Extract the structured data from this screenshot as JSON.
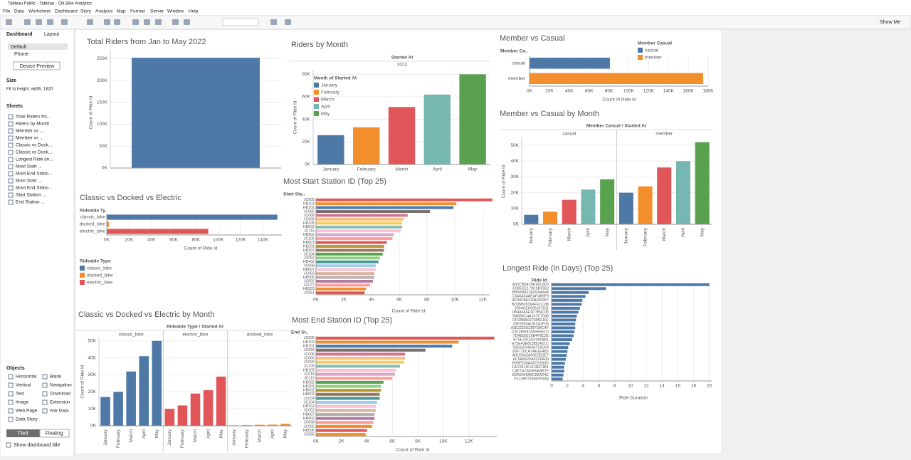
{
  "app": {
    "window_title": "Tableau Public - Tableau - Citi Bike Analytics",
    "menu": [
      "File",
      "Data",
      "Worksheet",
      "Dashboard",
      "Story",
      "Analysis",
      "Map",
      "Format",
      "Server",
      "Window",
      "Help"
    ],
    "show_me": "Show Me",
    "tabs": [
      "Dashboard",
      "Layout"
    ],
    "devices": [
      "Default",
      "Phone"
    ],
    "device_preview": "Device Preview",
    "size_heading": "Size",
    "size_value": "Fit to height: width: 1820",
    "sheets_heading": "Sheets",
    "sheets": [
      "Total Riders fro...",
      "Riders by Month",
      "Member vs ...",
      "Member vs ...",
      "Classic vs Dock...",
      "Classic vs Dock...",
      "Longest Ride (in...",
      "Most Start ...",
      "Most End Statio...",
      "Most Start ...",
      "Most End Statio...",
      "Start Station ...",
      "End Station ..."
    ],
    "objects_heading": "Objects",
    "objects": [
      "Horizontal",
      "Blank",
      "Vertical",
      "Navigation",
      "Text",
      "Download",
      "Image",
      "Extension",
      "Web Page",
      "Ask Data",
      "Data Story"
    ],
    "modes": [
      "Tiled",
      "Floating"
    ],
    "show_title": "Show dashboard title"
  },
  "chart_data": [
    {
      "type": "bar",
      "title": "Total Riders from Jan to May 2022",
      "y_label": "Count of Ride Id",
      "values": [
        252000
      ],
      "color": "#4e79a7",
      "grid": true,
      "ylim": [
        0,
        270000
      ],
      "yticks": [
        {
          "value": 0,
          "label": "0K"
        },
        {
          "value": 50000,
          "label": "50K"
        },
        {
          "value": 100000,
          "label": "100K"
        },
        {
          "value": 150000,
          "label": "150K"
        },
        {
          "value": 200000,
          "label": "200K"
        },
        {
          "value": 250000,
          "label": "250K"
        }
      ]
    },
    {
      "type": "bar",
      "title": "Riders by Month",
      "header": "Started At",
      "subheader": "2022",
      "y_label": "Count of Ride Id",
      "legend_title": "Month of Started At",
      "categories": [
        "January",
        "February",
        "March",
        "April",
        "May"
      ],
      "values": [
        26000,
        33000,
        51000,
        62000,
        80000
      ],
      "colors": [
        "#4e79a7",
        "#f28e2b",
        "#e15759",
        "#76b7b2",
        "#59a14f"
      ],
      "grid": true,
      "ylim": [
        0,
        84000
      ],
      "yticks": [
        {
          "value": 0,
          "label": "0K"
        },
        {
          "value": 20000,
          "label": "20K"
        },
        {
          "value": 40000,
          "label": "40K"
        },
        {
          "value": 60000,
          "label": "60K"
        },
        {
          "value": 80000,
          "label": "80K"
        }
      ]
    },
    {
      "type": "hbar",
      "title": "Member vs Casual",
      "row_header": "Member Ca..",
      "x_label": "Count of Ride Id",
      "legend_title": "Member Casual",
      "categories": [
        "casual",
        "member"
      ],
      "values": [
        81000,
        175000
      ],
      "colors": [
        "#4e79a7",
        "#f28e2b"
      ],
      "grid": true,
      "xlim": [
        0,
        180000
      ],
      "xticks": [
        {
          "value": 0,
          "label": "0K"
        },
        {
          "value": 20000,
          "label": "20K"
        },
        {
          "value": 40000,
          "label": "40K"
        },
        {
          "value": 60000,
          "label": "60K"
        },
        {
          "value": 80000,
          "label": "80K"
        },
        {
          "value": 100000,
          "label": "100K"
        },
        {
          "value": 120000,
          "label": "120K"
        },
        {
          "value": 140000,
          "label": "140K"
        },
        {
          "value": 160000,
          "label": "160K"
        },
        {
          "value": 180000,
          "label": "180K"
        }
      ]
    },
    {
      "type": "bar",
      "title": "Member vs Casual by Month",
      "header": "Member Casual / Started At",
      "y_label": "Count of Ride Id",
      "categories": [
        "January",
        "February",
        "March",
        "April",
        "May"
      ],
      "colors": [
        "#4e79a7",
        "#f28e2b",
        "#e15759",
        "#76b7b2",
        "#59a14f"
      ],
      "series": [
        {
          "name": "casual",
          "values": [
            6000,
            8000,
            15500,
            22000,
            28500
          ]
        },
        {
          "name": "member",
          "values": [
            20000,
            24000,
            36000,
            40000,
            52000
          ]
        }
      ],
      "grid": true,
      "ylim": [
        0,
        55000
      ],
      "yticks": [
        {
          "value": 0,
          "label": "0K"
        },
        {
          "value": 10000,
          "label": "10K"
        },
        {
          "value": 20000,
          "label": "20K"
        },
        {
          "value": 30000,
          "label": "30K"
        },
        {
          "value": 40000,
          "label": "40K"
        },
        {
          "value": 50000,
          "label": "50K"
        }
      ]
    },
    {
      "type": "hbar",
      "title": "Classic vs Docked vs Electric",
      "row_header": "Rideable Ty..",
      "x_label": "Count of Ride Id",
      "legend_title": "Rideable Type",
      "categories": [
        "classic_bike",
        "docked_bike",
        "electric_bike"
      ],
      "values": [
        153000,
        2000,
        91000
      ],
      "colors": [
        "#4e79a7",
        "#f28e2b",
        "#e15759"
      ],
      "grid": true,
      "xlim": [
        0,
        157000
      ],
      "xticks": [
        {
          "value": 0,
          "label": "0K"
        },
        {
          "value": 20000,
          "label": "20K"
        },
        {
          "value": 40000,
          "label": "40K"
        },
        {
          "value": 60000,
          "label": "60K"
        },
        {
          "value": 80000,
          "label": "80K"
        },
        {
          "value": 100000,
          "label": "100K"
        },
        {
          "value": 120000,
          "label": "120K"
        },
        {
          "value": 140000,
          "label": "140K"
        }
      ]
    },
    {
      "type": "bar",
      "title": "Classic vs Docked vs Electric by Month",
      "header": "Rideable Type / Started At",
      "y_label": "Count of Ride Id",
      "categories": [
        "January",
        "February",
        "March",
        "April",
        "May"
      ],
      "series": [
        {
          "name": "classic_bike",
          "color": "#4e79a7",
          "values": [
            17000,
            20000,
            32000,
            41000,
            50000
          ]
        },
        {
          "name": "electric_bike",
          "color": "#e15759",
          "values": [
            10000,
            12000,
            19000,
            21000,
            29000
          ]
        },
        {
          "name": "docked_bike",
          "color": "#f28e2b",
          "values": [
            300,
            400,
            600,
            700,
            1200
          ]
        }
      ],
      "grid": true,
      "ylim": [
        0,
        52000
      ],
      "yticks": [
        {
          "value": 0,
          "label": "0K"
        },
        {
          "value": 10000,
          "label": "10K"
        },
        {
          "value": 20000,
          "label": "20K"
        },
        {
          "value": 30000,
          "label": "30K"
        },
        {
          "value": 40000,
          "label": "40K"
        },
        {
          "value": 50000,
          "label": "50K"
        }
      ]
    },
    {
      "type": "hbar",
      "title": "Most Start Station ID (Top 25)",
      "row_header": "Start Sta..",
      "x_label": "Count of Ride Id",
      "categories": [
        "JC005",
        "HB103",
        "HB101",
        "JC066",
        "JC008",
        "JC009",
        "HB105",
        "HB602",
        "JC115",
        "HB502",
        "JC106",
        "HB603",
        "HB201",
        "HB202",
        "JC104",
        "JC052",
        "HB402",
        "JC098",
        "HB607",
        "JC003",
        "HB506",
        "JC055",
        "JC072",
        "HB303",
        "JC051"
      ],
      "values": [
        12700,
        10100,
        9900,
        8200,
        6600,
        6300,
        6200,
        6200,
        6100,
        5600,
        5500,
        5100,
        4900,
        4900,
        4800,
        4600,
        4500,
        4300,
        4300,
        4200,
        4200,
        4100,
        3900,
        3600,
        3500
      ],
      "colors": [
        "#e15759",
        "#f28e2b",
        "#4e79a7",
        "#79706e",
        "#d37295",
        "#ffbe7d",
        "#f1ce63",
        "#86bcb6",
        "#fabfd2",
        "#d4a6c8",
        "#ff9d9a",
        "#e15759",
        "#b6992d",
        "#9d7660",
        "#59a14f",
        "#8cd17d",
        "#499894",
        "#a0cbe8",
        "#fabfd2",
        "#d7b5a6",
        "#bab0ac",
        "#b07aa1",
        "#ff9d9a",
        "#f28e2b",
        "#e15759"
      ],
      "grid": true,
      "xlim": [
        0,
        12500
      ],
      "xticks": [
        {
          "value": 0,
          "label": "0K"
        },
        {
          "value": 2000,
          "label": "2K"
        },
        {
          "value": 4000,
          "label": "4K"
        },
        {
          "value": 6000,
          "label": "6K"
        },
        {
          "value": 8000,
          "label": "8K"
        },
        {
          "value": 10000,
          "label": "10K"
        },
        {
          "value": 12000,
          "label": "12K"
        }
      ]
    },
    {
      "type": "hbar",
      "title": "Most End Station ID (Top 25)",
      "row_header": "End St..",
      "x_label": "Count of Ride Id",
      "categories": [
        "JC005",
        "HB103",
        "HB101",
        "JC056",
        "JC008",
        "JC066",
        "JC009",
        "JC109",
        "HB105",
        "JC018",
        "JC115",
        "HB502",
        "HB201",
        "HB602",
        "HB603",
        "JC034",
        "JC104",
        "HB102",
        "JC052",
        "HB607",
        "HB402",
        "JC098",
        "JC095",
        "HB506",
        "JC055"
      ],
      "values": [
        14000,
        11200,
        10700,
        8600,
        7000,
        7000,
        6900,
        6600,
        6300,
        6200,
        6000,
        5300,
        5100,
        5100,
        5000,
        5000,
        4800,
        4700,
        4700,
        4600,
        4600,
        4500,
        4400,
        4000,
        3900
      ],
      "colors": [
        "#e15759",
        "#f28e2b",
        "#4e79a7",
        "#79706e",
        "#d37295",
        "#ffbe7d",
        "#f1ce63",
        "#86bcb6",
        "#fabfd2",
        "#d4a6c8",
        "#ff9d9a",
        "#59a14f",
        "#8cd17d",
        "#b6992d",
        "#9d7660",
        "#499894",
        "#a0cbe8",
        "#fabfd2",
        "#d7b5a6",
        "#bab0ac",
        "#b07aa1",
        "#ff9d9a",
        "#f28e2b",
        "#e15759",
        "#f28e2b"
      ],
      "grid": true,
      "xlim": [
        0,
        14200
      ],
      "xticks": [
        {
          "value": 0,
          "label": "0K"
        },
        {
          "value": 2000,
          "label": "2K"
        },
        {
          "value": 4000,
          "label": "4K"
        },
        {
          "value": 6000,
          "label": "6K"
        },
        {
          "value": 8000,
          "label": "8K"
        },
        {
          "value": 10000,
          "label": "10K"
        },
        {
          "value": 12000,
          "label": "12K"
        }
      ]
    },
    {
      "type": "hbar",
      "title": "Longest Ride (in Days) (Top 25)",
      "row_header": "Ride Id",
      "x_label": "Ride Duration",
      "categories": [
        "A35CB047BE96C883",
        "E986CE170C9B9962",
        "BB56BA13E05A4A44",
        "C3A6A54AEAF4B6F9",
        "AF93FBEE94ED0967",
        "BD35B0536AFFCC88",
        "3994CE6936357811",
        "0B4A644E1D7B9C05",
        "B46B6C4A167C7049",
        "DF3ABA02708B216F",
        "33E9930ACB2A2F05",
        "A3E22D0C0B7DBC4F",
        "D322B60D3A6B9E1D",
        "7D4E58216B4F8C26",
        "B75E78C2620908B1",
        "E75E43E8C88DA21C",
        "59D62D460A756D04",
        "90F710CA7AE1E4B2",
        "A0C6543A69C5B2E7",
        "6C6A8920A52F6A09",
        "B68FE08A43C91B3D",
        "1AC0913F1C4EC3B1",
        "C4E7A7A6999A8B7F",
        "B2A9046A5C86A24C",
        "F1149F703800F5A8"
      ],
      "values": [
        20,
        6.9,
        4.7,
        4.3,
        3.9,
        3.8,
        3.6,
        3.4,
        3.2,
        3.1,
        3.0,
        3.0,
        2.9,
        2.8,
        2.6,
        2.3,
        2.1,
        2.0,
        1.9,
        1.8,
        1.7,
        1.6,
        1.6,
        1.5,
        1.4
      ],
      "color": "#4e79a7",
      "grid": true,
      "xlim": [
        0,
        20.3
      ],
      "xticks": [
        0,
        2,
        4,
        6,
        8,
        10,
        12,
        14,
        16,
        18,
        20
      ]
    }
  ]
}
